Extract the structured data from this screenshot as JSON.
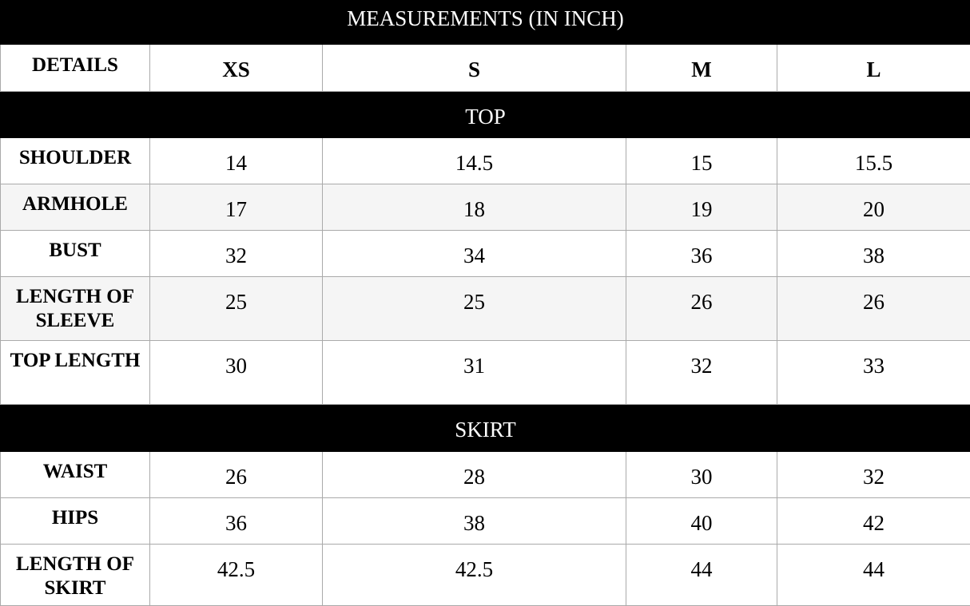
{
  "title": "MEASUREMENTS (IN INCH)",
  "header": {
    "details": "DETAILS",
    "sizes": [
      "XS",
      "S",
      "M",
      "L"
    ]
  },
  "sections": [
    {
      "name": "TOP",
      "rows": [
        {
          "label": "SHOULDER",
          "values": [
            "14",
            "14.5",
            "15",
            "15.5"
          ],
          "shaded": false
        },
        {
          "label": "ARMHOLE",
          "values": [
            "17",
            "18",
            "19",
            "20"
          ],
          "shaded": true
        },
        {
          "label": "BUST",
          "values": [
            "32",
            "34",
            "36",
            "38"
          ],
          "shaded": false
        },
        {
          "label": "LENGTH OF SLEEVE",
          "values": [
            "25",
            "25",
            "26",
            "26"
          ],
          "shaded": true
        },
        {
          "label": "TOP LENGTH",
          "values": [
            "30",
            "31",
            "32",
            "33"
          ],
          "shaded": false
        }
      ]
    },
    {
      "name": "SKIRT",
      "rows": [
        {
          "label": "WAIST",
          "values": [
            "26",
            "28",
            "30",
            "32"
          ],
          "shaded": false
        },
        {
          "label": "HIPS",
          "values": [
            "36",
            "38",
            "40",
            "42"
          ],
          "shaded": false
        },
        {
          "label": "LENGTH OF SKIRT",
          "values": [
            "42.5",
            "42.5",
            "44",
            "44"
          ],
          "shaded": false
        }
      ]
    }
  ],
  "colors": {
    "bar": "#000000",
    "shaded_row": "#f5f5f5",
    "border": "#aaaaaa"
  }
}
